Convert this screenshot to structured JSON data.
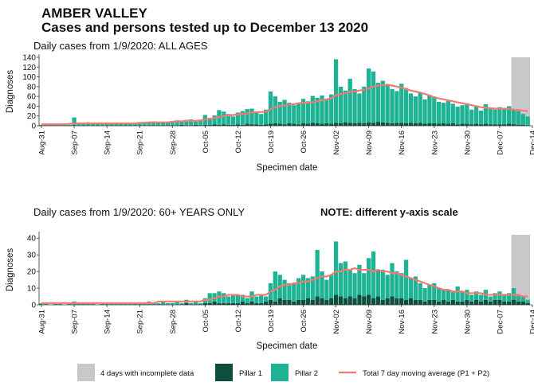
{
  "title": "AMBER VALLEY",
  "subtitle": "Cases and persons tested up to December 13 2020",
  "incomplete": {
    "label": "4 days with incomplete data",
    "color": "#c8c8c8"
  },
  "chart_data": [
    {
      "type": "bar",
      "title": "Daily cases from 1/9/2020: ALL AGES",
      "xlabel": "Specimen date",
      "ylabel": "Diagnoses",
      "categories": [
        "Aug-31",
        null,
        null,
        null,
        null,
        null,
        null,
        "Sep-07",
        null,
        null,
        null,
        null,
        null,
        null,
        "Sep-14",
        null,
        null,
        null,
        null,
        null,
        null,
        "Sep-21",
        null,
        null,
        null,
        null,
        null,
        null,
        "Sep-28",
        null,
        null,
        null,
        null,
        null,
        null,
        "Oct-05",
        null,
        null,
        null,
        null,
        null,
        null,
        "Oct-12",
        null,
        null,
        null,
        null,
        null,
        null,
        "Oct-19",
        null,
        null,
        null,
        null,
        null,
        null,
        "Oct-26",
        null,
        null,
        null,
        null,
        null,
        null,
        "Nov-02",
        null,
        null,
        null,
        null,
        null,
        null,
        "Nov-09",
        null,
        null,
        null,
        null,
        null,
        null,
        "Nov-16",
        null,
        null,
        null,
        null,
        null,
        null,
        "Nov-23",
        null,
        null,
        null,
        null,
        null,
        null,
        "Nov-30",
        null,
        null,
        null,
        null,
        null,
        null,
        "Dec-07",
        null,
        null,
        null,
        null,
        null,
        null,
        "Dec-14"
      ],
      "series": [
        {
          "name": "Pillar 1",
          "color": "#0b4f3c",
          "values": [
            0,
            0,
            1,
            0,
            0,
            0,
            0,
            1,
            0,
            0,
            1,
            0,
            0,
            0,
            0,
            1,
            0,
            0,
            1,
            0,
            0,
            1,
            0,
            1,
            1,
            0,
            1,
            0,
            1,
            1,
            2,
            1,
            1,
            2,
            1,
            2,
            2,
            3,
            2,
            3,
            2,
            2,
            3,
            2,
            4,
            3,
            3,
            2,
            3,
            4,
            5,
            4,
            3,
            5,
            4,
            3,
            5,
            4,
            6,
            5,
            4,
            5,
            4,
            6,
            5,
            7,
            6,
            5,
            6,
            5,
            7,
            6,
            8,
            7,
            6,
            5,
            6,
            6,
            5,
            6,
            5,
            6,
            4,
            5,
            5,
            4,
            5,
            4,
            5,
            3,
            4,
            4,
            3,
            4,
            3,
            4,
            3,
            3,
            3,
            3,
            4,
            3,
            2,
            2,
            1,
            null
          ]
        },
        {
          "name": "Pillar 2",
          "color": "#1db394",
          "values": [
            2,
            3,
            3,
            2,
            4,
            3,
            2,
            16,
            4,
            5,
            6,
            5,
            4,
            3,
            4,
            5,
            4,
            6,
            5,
            4,
            5,
            6,
            7,
            5,
            8,
            7,
            6,
            8,
            9,
            10,
            8,
            11,
            12,
            9,
            10,
            20,
            14,
            18,
            30,
            26,
            22,
            17,
            24,
            28,
            30,
            32,
            26,
            22,
            30,
            66,
            55,
            45,
            50,
            42,
            38,
            44,
            50,
            46,
            55,
            52,
            58,
            48,
            60,
            130,
            75,
            65,
            90,
            70,
            60,
            75,
            110,
            105,
            80,
            85,
            78,
            70,
            65,
            80,
            72,
            60,
            55,
            62,
            50,
            58,
            55,
            45,
            42,
            48,
            40,
            36,
            38,
            42,
            30,
            35,
            28,
            40,
            32,
            30,
            35,
            33,
            36,
            30,
            28,
            22,
            18,
            null
          ]
        },
        {
          "name": "Total 7 day moving average (P1 + P2)",
          "color": "#f47a72",
          "type": "line",
          "values": [
            3,
            3,
            3,
            3,
            3,
            3,
            4,
            5,
            5,
            5,
            5,
            5,
            5,
            5,
            5,
            5,
            5,
            5,
            5,
            5,
            5,
            6,
            6,
            7,
            7,
            7,
            7,
            7,
            8,
            9,
            9,
            10,
            10,
            10,
            11,
            13,
            14,
            16,
            18,
            20,
            21,
            22,
            23,
            24,
            25,
            27,
            28,
            28,
            29,
            34,
            38,
            40,
            42,
            43,
            44,
            46,
            47,
            47,
            48,
            50,
            52,
            54,
            56,
            63,
            65,
            66,
            69,
            70,
            72,
            74,
            76,
            80,
            82,
            83,
            84,
            82,
            80,
            78,
            75,
            72,
            70,
            68,
            65,
            62,
            58,
            56,
            54,
            52,
            50,
            48,
            46,
            44,
            42,
            40,
            38,
            37,
            36,
            35,
            35,
            35,
            34,
            33,
            32,
            31,
            30,
            null
          ]
        }
      ],
      "ylim": [
        0,
        140
      ],
      "yticks": [
        0,
        20,
        40,
        60,
        80,
        100,
        120,
        140
      ]
    },
    {
      "type": "bar",
      "title": "Daily cases from 1/9/2020: 60+ YEARS ONLY",
      "note": "NOTE: different y-axis scale",
      "xlabel": "Specimen date",
      "ylabel": "Diagnoses",
      "categories": [
        "Aug-31",
        null,
        null,
        null,
        null,
        null,
        null,
        "Sep-07",
        null,
        null,
        null,
        null,
        null,
        null,
        "Sep-14",
        null,
        null,
        null,
        null,
        null,
        null,
        "Sep-21",
        null,
        null,
        null,
        null,
        null,
        null,
        "Sep-28",
        null,
        null,
        null,
        null,
        null,
        null,
        "Oct-05",
        null,
        null,
        null,
        null,
        null,
        null,
        "Oct-12",
        null,
        null,
        null,
        null,
        null,
        null,
        "Oct-19",
        null,
        null,
        null,
        null,
        null,
        null,
        "Oct-26",
        null,
        null,
        null,
        null,
        null,
        null,
        "Nov-02",
        null,
        null,
        null,
        null,
        null,
        null,
        "Nov-09",
        null,
        null,
        null,
        null,
        null,
        null,
        "Nov-16",
        null,
        null,
        null,
        null,
        null,
        null,
        "Nov-23",
        null,
        null,
        null,
        null,
        null,
        null,
        "Nov-30",
        null,
        null,
        null,
        null,
        null,
        null,
        "Dec-07",
        null,
        null,
        null,
        null,
        null,
        null,
        "Dec-14"
      ],
      "series": [
        {
          "color": "#0b4f3c",
          "values": [
            0,
            0,
            0,
            0,
            0,
            0,
            0,
            0,
            0,
            0,
            0,
            0,
            0,
            0,
            0,
            0,
            0,
            0,
            0,
            0,
            0,
            0,
            0,
            0,
            0,
            0,
            0,
            0,
            0,
            0,
            0,
            1,
            0,
            0,
            0,
            1,
            1,
            2,
            1,
            1,
            1,
            1,
            1,
            2,
            1,
            2,
            1,
            1,
            2,
            3,
            2,
            4,
            3,
            3,
            2,
            3,
            3,
            4,
            3,
            5,
            4,
            3,
            4,
            6,
            5,
            4,
            5,
            4,
            6,
            5,
            6,
            4,
            5,
            3,
            4,
            5,
            4,
            4,
            3,
            4,
            3,
            3,
            2,
            3,
            3,
            2,
            3,
            2,
            3,
            2,
            2,
            3,
            2,
            3,
            2,
            3,
            2,
            3,
            3,
            2,
            2,
            3,
            2,
            2,
            1,
            null
          ]
        },
        {
          "color": "#1db394",
          "values": [
            1,
            1,
            0,
            1,
            1,
            0,
            1,
            2,
            1,
            1,
            1,
            1,
            0,
            1,
            1,
            1,
            1,
            1,
            1,
            1,
            1,
            1,
            1,
            2,
            1,
            1,
            2,
            1,
            1,
            2,
            1,
            2,
            1,
            2,
            1,
            3,
            6,
            5,
            7,
            6,
            4,
            5,
            5,
            4,
            3,
            6,
            4,
            5,
            3,
            10,
            18,
            14,
            12,
            10,
            11,
            13,
            15,
            12,
            14,
            28,
            16,
            12,
            14,
            32,
            20,
            22,
            16,
            15,
            18,
            14,
            22,
            28,
            16,
            18,
            14,
            20,
            16,
            15,
            24,
            12,
            14,
            10,
            8,
            9,
            10,
            8,
            6,
            7,
            5,
            9,
            6,
            6,
            4,
            5,
            4,
            6,
            3,
            4,
            5,
            4,
            5,
            7,
            4,
            3,
            2,
            null
          ]
        },
        {
          "color": "#f47a72",
          "type": "line",
          "values": [
            1,
            1,
            1,
            1,
            1,
            1,
            1,
            1,
            1,
            1,
            1,
            1,
            1,
            1,
            1,
            1,
            1,
            1,
            1,
            1,
            1,
            1,
            1,
            1,
            1,
            2,
            2,
            2,
            2,
            2,
            2,
            2,
            2,
            2,
            2,
            3,
            3,
            4,
            5,
            5,
            6,
            6,
            6,
            5,
            5,
            5,
            6,
            6,
            6,
            8,
            9,
            11,
            12,
            12,
            13,
            13,
            14,
            14,
            15,
            16,
            17,
            17,
            18,
            20,
            20,
            21,
            21,
            22,
            21,
            21,
            21,
            20,
            21,
            20,
            20,
            19,
            19,
            18,
            17,
            16,
            15,
            14,
            13,
            12,
            11,
            10,
            9,
            9,
            8,
            8,
            8,
            7,
            7,
            7,
            7,
            6,
            6,
            6,
            6,
            6,
            6,
            6,
            6,
            5,
            5,
            null
          ]
        }
      ],
      "ylim": [
        0,
        42
      ],
      "yticks": [
        0,
        10,
        20,
        30,
        40
      ]
    }
  ]
}
